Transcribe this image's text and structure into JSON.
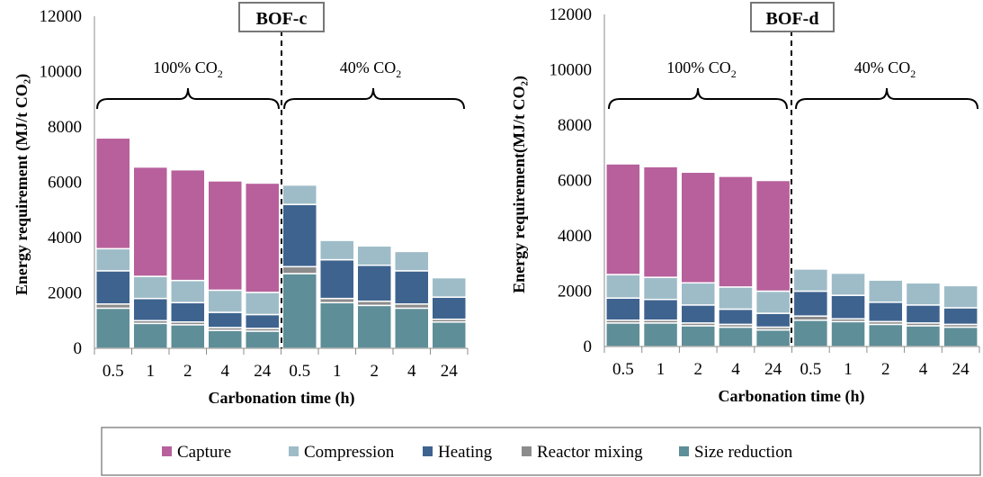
{
  "chart_data": [
    {
      "type": "bar",
      "stacked": true,
      "title": "BOF-c",
      "xlabel": "Carbonation time (h)",
      "ylabel": "Energy requirement (MJ/t CO₂)",
      "ylim": [
        0,
        12000
      ],
      "yticks": [
        "0",
        "2000",
        "4000",
        "6000",
        "8000",
        "10000",
        "12000"
      ],
      "categories": [
        "0.5",
        "1",
        "2",
        "4",
        "24",
        "0.5",
        "1",
        "2",
        "4",
        "24"
      ],
      "groups": [
        {
          "label": "100% CO",
          "sub": "2",
          "start": 0,
          "end": 4
        },
        {
          "label": "40% CO",
          "sub": "2",
          "start": 5,
          "end": 9
        }
      ],
      "series": [
        {
          "name": "Size reduction",
          "values": [
            1450,
            900,
            850,
            650,
            620,
            2700,
            1650,
            1550,
            1450,
            950
          ]
        },
        {
          "name": "Reactor mixing",
          "values": [
            150,
            100,
            100,
            100,
            100,
            250,
            150,
            150,
            150,
            100
          ]
        },
        {
          "name": "Heating",
          "values": [
            1200,
            800,
            700,
            550,
            500,
            2250,
            1400,
            1300,
            1200,
            800
          ]
        },
        {
          "name": "Compression",
          "values": [
            800,
            800,
            800,
            800,
            800,
            700,
            700,
            700,
            700,
            700
          ]
        },
        {
          "name": "Capture",
          "values": [
            4000,
            3950,
            4000,
            3950,
            3950,
            0,
            0,
            0,
            0,
            0
          ]
        }
      ]
    },
    {
      "type": "bar",
      "stacked": true,
      "title": "BOF-d",
      "xlabel": "Carbonation time (h)",
      "ylabel": "Energy requirement(MJ/t CO₂)",
      "ylim": [
        0,
        12000
      ],
      "yticks": [
        "0",
        "2000",
        "4000",
        "6000",
        "8000",
        "10000",
        "12000"
      ],
      "categories": [
        "0.5",
        "1",
        "2",
        "4",
        "24",
        "0.5",
        "1",
        "2",
        "4",
        "24"
      ],
      "groups": [
        {
          "label": "100% CO",
          "sub": "2",
          "start": 0,
          "end": 4
        },
        {
          "label": "40% CO",
          "sub": "2",
          "start": 5,
          "end": 9
        }
      ],
      "series": [
        {
          "name": "Size reduction",
          "values": [
            850,
            850,
            750,
            700,
            600,
            950,
            900,
            800,
            750,
            700
          ]
        },
        {
          "name": "Reactor mixing",
          "values": [
            100,
            100,
            100,
            100,
            100,
            150,
            100,
            100,
            100,
            100
          ]
        },
        {
          "name": "Heating",
          "values": [
            800,
            750,
            650,
            550,
            500,
            900,
            850,
            700,
            650,
            600
          ]
        },
        {
          "name": "Compression",
          "values": [
            850,
            800,
            800,
            800,
            800,
            800,
            800,
            800,
            800,
            800
          ]
        },
        {
          "name": "Capture",
          "values": [
            4000,
            4000,
            4000,
            4000,
            4000,
            0,
            0,
            0,
            0,
            0
          ]
        }
      ]
    }
  ],
  "legend": [
    {
      "name": "Capture",
      "color": "#b7609c"
    },
    {
      "name": "Compression",
      "color": "#9ebcc8"
    },
    {
      "name": "Heating",
      "color": "#3e638f"
    },
    {
      "name": "Reactor mixing",
      "color": "#8c8c8c"
    },
    {
      "name": "Size reduction",
      "color": "#5e8e98"
    }
  ],
  "colors": {
    "Capture": "#b7609c",
    "Compression": "#9ebcc8",
    "Heating": "#3e638f",
    "Reactor mixing": "#8c8c8c",
    "Size reduction": "#5e8e98"
  }
}
